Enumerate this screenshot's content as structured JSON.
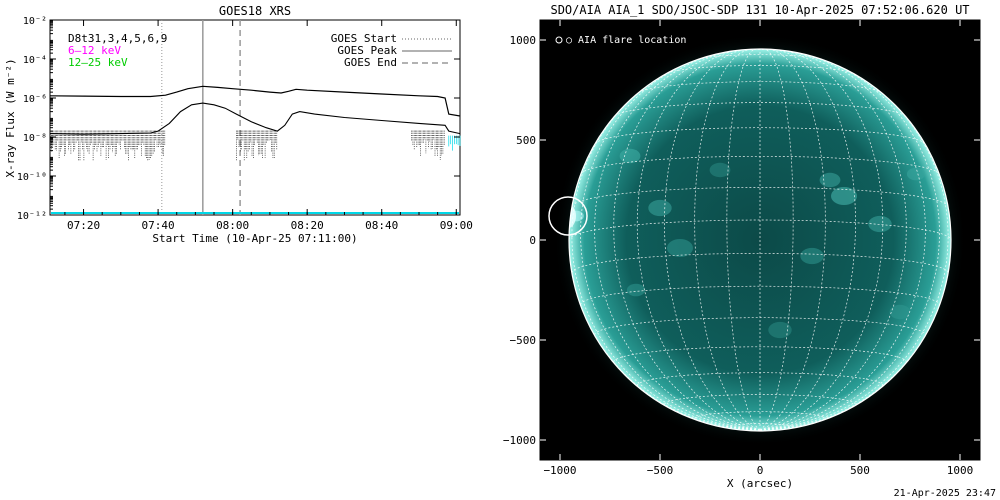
{
  "chart_data": [
    {
      "type": "line",
      "title": "GOES18 XRS",
      "xlabel": "Start Time (10-Apr-25 07:11:00)",
      "ylabel": "X-ray Flux (W m⁻²)",
      "yscale": "log",
      "xlim": [
        "07:11",
        "09:01"
      ],
      "ylim": [
        1e-12,
        0.01
      ],
      "x_ticks": [
        "07:20",
        "07:40",
        "08:00",
        "08:20",
        "08:40",
        "09:00"
      ],
      "y_ticks": [
        "10⁻¹²",
        "10⁻¹⁰",
        "10⁻⁸",
        "10⁻⁶",
        "10⁻⁴",
        "10⁻²"
      ],
      "y_tick_values": [
        1e-12,
        1e-10,
        1e-08,
        1e-06,
        0.0001,
        0.01
      ],
      "series_labels": [
        {
          "text": "D8t31,3,4,5,6,9",
          "color": "#000000"
        },
        {
          "text": "6–12 keV",
          "color": "#ff00ff"
        },
        {
          "text": "12–25 keV",
          "color": "#00cc00"
        }
      ],
      "legend": [
        {
          "label": "GOES Start",
          "style": "dotted"
        },
        {
          "label": "GOES Peak",
          "style": "solid"
        },
        {
          "label": "GOES End",
          "style": "dashed"
        }
      ],
      "event_lines": {
        "start": "07:41",
        "peak": "07:52",
        "end": "08:02"
      },
      "series": [
        {
          "band": "long",
          "x": [
            "07:11",
            "07:20",
            "07:30",
            "07:38",
            "07:42",
            "07:45",
            "07:48",
            "07:52",
            "07:56",
            "08:00",
            "08:05",
            "08:10",
            "08:13",
            "08:15",
            "08:17",
            "08:20",
            "08:30",
            "08:40",
            "08:50",
            "08:55",
            "08:57",
            "08:58",
            "09:01"
          ],
          "values": [
            1.3e-06,
            1.25e-06,
            1.2e-06,
            1.2e-06,
            1.4e-06,
            2e-06,
            3e-06,
            4e-06,
            3.5e-06,
            3e-06,
            2.5e-06,
            2e-06,
            1.8e-06,
            2.2e-06,
            2.8e-06,
            2.5e-06,
            2e-06,
            1.6e-06,
            1.3e-06,
            1.2e-06,
            1e-06,
            1.5e-07,
            1.2e-07
          ]
        },
        {
          "band": "short",
          "x": [
            "07:11",
            "07:20",
            "07:30",
            "07:38",
            "07:40",
            "07:43",
            "07:46",
            "07:49",
            "07:52",
            "07:55",
            "07:58",
            "08:01",
            "08:05",
            "08:09",
            "08:12",
            "08:14",
            "08:16",
            "08:18",
            "08:22",
            "08:30",
            "08:40",
            "08:50",
            "08:57",
            "08:58",
            "09:01"
          ],
          "values": [
            1.5e-08,
            1.4e-08,
            1.5e-08,
            1.6e-08,
            2e-08,
            5e-08,
            2e-07,
            4.5e-07,
            5.5e-07,
            4.5e-07,
            3e-07,
            1.5e-07,
            6e-08,
            3e-08,
            2e-08,
            4e-08,
            1.5e-07,
            2e-07,
            1.5e-07,
            1e-07,
            7e-08,
            5e-08,
            4e-08,
            2e-08,
            1.5e-08
          ]
        }
      ]
    },
    {
      "type": "image",
      "title": "SDO/AIA AIA_1 SDO/JSOC-SDP 131 10-Apr-2025 07:52:06.620 UT",
      "xlabel": "X (arcsec)",
      "ylabel": "",
      "xlim": [
        -1100,
        1100
      ],
      "ylim": [
        -1100,
        1100
      ],
      "x_ticks": [
        "−1000",
        "−500",
        "0",
        "500",
        "1000"
      ],
      "y_ticks": [
        "1000",
        "500",
        "0",
        "−500",
        "−1000"
      ],
      "tick_values": [
        -1000,
        -500,
        0,
        500,
        1000
      ],
      "legend": "○ AIA flare location",
      "flare_location": {
        "x": -960,
        "y": 120
      },
      "colors": {
        "disk": "#0e5a58",
        "limb": "#7fe6d8",
        "grid": "#ffffff"
      }
    }
  ],
  "footer": {
    "timestamp": "21-Apr-2025 23:47"
  }
}
